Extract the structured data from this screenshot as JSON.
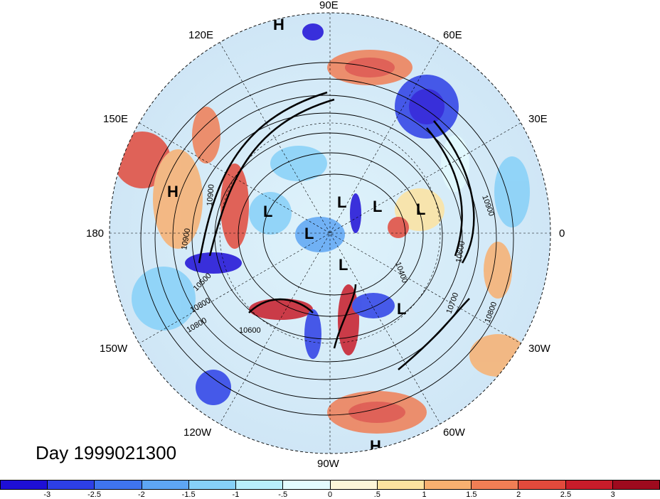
{
  "lon_labels": {
    "e90": "90E",
    "e120": "120E",
    "e60": "60E",
    "e150": "150E",
    "e30": "30E",
    "w180": "180",
    "zero": "0",
    "w150": "150W",
    "w30": "30W",
    "w120": "120W",
    "w60": "60W",
    "w90": "90W"
  },
  "title": "Day 1999021300",
  "pressure_centers": [
    "H",
    "H",
    "H",
    "L",
    "L",
    "L",
    "L",
    "L",
    "L",
    "L"
  ],
  "contour_labels": [
    "10900",
    "10800",
    "10900",
    "10500",
    "10800",
    "10600",
    "10400",
    "10600",
    "10700",
    "10800",
    "10900"
  ],
  "colorbar": {
    "colors": [
      "#1e0fd6",
      "#2d3fe6",
      "#3f74ee",
      "#5ea6f4",
      "#86d0f8",
      "#b8eefc",
      "#e3fbfe",
      "#fdf6d8",
      "#fde3a0",
      "#f8b070",
      "#f07e55",
      "#e24a3c",
      "#c81c2a",
      "#9e0a1e"
    ],
    "ticks": [
      "-3",
      "-2.5",
      "-2",
      "-1.5",
      "-1",
      "-.5",
      "0",
      ".5",
      "1",
      "1.5",
      "2",
      "2.5",
      "3"
    ]
  }
}
